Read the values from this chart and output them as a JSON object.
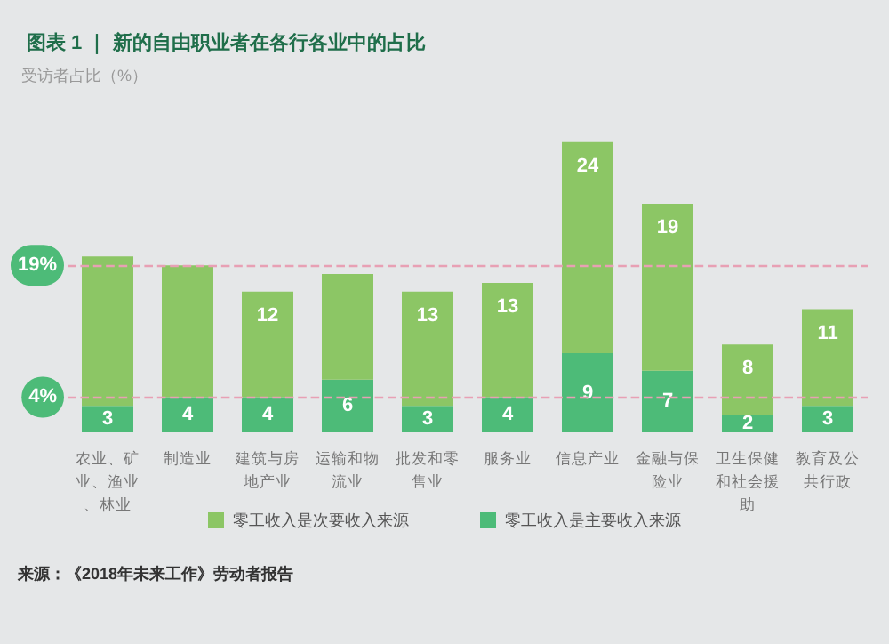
{
  "chart_data": {
    "type": "bar",
    "title": "图表 1 ｜ 新的自由职业者在各行各业中的占比",
    "ylabel": "受访者占比（%）",
    "categories": [
      "农业、矿业、渔业、林业",
      "制造业",
      "建筑与房地产业",
      "运输和物流业",
      "批发和零售业",
      "服务业",
      "信息产业",
      "金融与保险业",
      "卫生保健和社会援助",
      "教育及公共行政"
    ],
    "stacked": true,
    "series": [
      {
        "name": "零工收入是主要收入来源",
        "color": "#4dbb78",
        "values": [
          3,
          4,
          4,
          6,
          3,
          4,
          9,
          7,
          2,
          3
        ],
        "value_labels": [
          "3",
          "4",
          "4",
          "6",
          "3",
          "4",
          "9",
          "7",
          "2",
          "3"
        ]
      },
      {
        "name": "零工收入是次要收入来源",
        "color": "#8cc665",
        "values": [
          17,
          15,
          12,
          12,
          13,
          13,
          24,
          19,
          8,
          11
        ],
        "value_labels": [
          null,
          null,
          "12",
          null,
          "13",
          "13",
          "24",
          "19",
          "8",
          "11"
        ]
      }
    ],
    "tick_labels": "x",
    "grid": false,
    "legend": "bottom",
    "ref_lines": [
      {
        "axis": "y",
        "value": 19,
        "label": "19%",
        "color": "#e8a0b4",
        "line_style": "dashed"
      },
      {
        "axis": "y",
        "value": 4,
        "label": "4%",
        "color": "#e8a0b4",
        "line_style": "dashed"
      }
    ],
    "annotations": [
      "来源：《2018年未来工作》劳动者报告"
    ]
  }
}
